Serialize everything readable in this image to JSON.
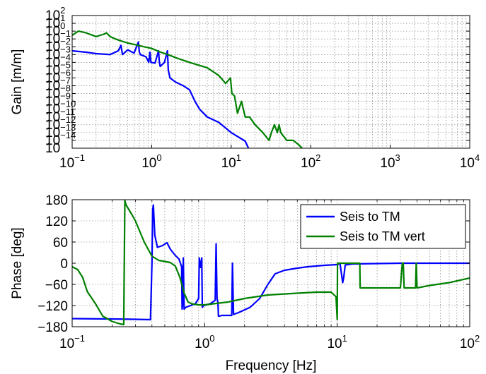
{
  "chart_data": [
    {
      "type": "line",
      "title": "",
      "xlabel": "",
      "ylabel": "Gain [m/m]",
      "xscale": "log",
      "yscale": "log",
      "xlim": [
        0.1,
        10000
      ],
      "ylim": [
        1e-15,
        100
      ],
      "grid": true,
      "legend": "none",
      "x_tick_labels": [
        {
          "base": "10",
          "exp": "−1"
        },
        {
          "base": "10",
          "exp": "0"
        },
        {
          "base": "10",
          "exp": "1"
        },
        {
          "base": "10",
          "exp": "2"
        },
        {
          "base": "10",
          "exp": "3"
        },
        {
          "base": "10",
          "exp": "4"
        }
      ],
      "y_tick_labels": [
        {
          "base": "10",
          "exp": "2"
        },
        {
          "base": "10",
          "exp": "1"
        },
        {
          "base": "10",
          "exp": "0"
        },
        {
          "base": "10",
          "exp": "−1"
        },
        {
          "base": "10",
          "exp": "−2"
        },
        {
          "base": "10",
          "exp": "−3"
        },
        {
          "base": "10",
          "exp": "−4"
        },
        {
          "base": "10",
          "exp": "−5"
        },
        {
          "base": "10",
          "exp": "−6"
        },
        {
          "base": "10",
          "exp": "−7"
        },
        {
          "base": "10",
          "exp": "−8"
        },
        {
          "base": "10",
          "exp": "−9"
        },
        {
          "base": "10",
          "exp": "−10"
        },
        {
          "base": "10",
          "exp": "−11"
        },
        {
          "base": "10",
          "exp": "−12"
        },
        {
          "base": "10",
          "exp": "−13"
        },
        {
          "base": "10",
          "exp": "−14"
        },
        {
          "base": "10",
          "exp": ""
        }
      ],
      "series": [
        {
          "name": "Seis to TM",
          "color": "#0000ff",
          "x": [
            0.1,
            0.15,
            0.2,
            0.3,
            0.38,
            0.41,
            0.43,
            0.5,
            0.6,
            0.68,
            0.7,
            0.72,
            0.85,
            0.92,
            0.95,
            0.98,
            1.1,
            1.22,
            1.25,
            1.28,
            1.45,
            1.58,
            1.62,
            1.7,
            2,
            2.5,
            3,
            3.5,
            4,
            5,
            7,
            10,
            15,
            16.5
          ],
          "y": [
            0.003,
            0.002,
            0.0013,
            0.001,
            0.003,
            0.015,
            0.001,
            0.004,
            0.0015,
            0.04,
            0.002,
            0.001,
            0.0005,
            0.0001,
            0.002,
            0.0001,
            8e-05,
            0.003,
            0.0001,
            3e-05,
            0.0001,
            0.003,
            1e-05,
            1e-06,
            3e-07,
            1e-07,
            3e-08,
            1e-09,
            1e-10,
            1e-11,
            2e-12,
            1e-13,
            8e-15,
            1e-15
          ]
        },
        {
          "name": "Seis to TM vert",
          "color": "#008000",
          "x": [
            0.1,
            0.12,
            0.15,
            0.2,
            0.25,
            0.27,
            0.3,
            0.35,
            0.4,
            0.5,
            0.6,
            0.8,
            1,
            1.3,
            1.6,
            2,
            3,
            5,
            7,
            8.5,
            9.8,
            10.2,
            11,
            12,
            13.5,
            15,
            17,
            20,
            25,
            30,
            32,
            35,
            38,
            40,
            42,
            50,
            60,
            70,
            78
          ],
          "y": [
            0.3,
            1,
            0.6,
            0.2,
            0.4,
            0.6,
            0.2,
            0.1,
            0.06,
            0.03,
            0.02,
            0.01,
            0.006,
            0.002,
            0.001,
            0.0004,
            0.0001,
            2e-05,
            2e-06,
            2e-07,
            1e-06,
            1e-08,
            5e-09,
            3e-11,
            1e-09,
            1e-11,
            1e-11,
            1e-12,
            1e-13,
            1e-14,
            1e-13,
            1e-12,
            1e-13,
            1e-12,
            1e-13,
            1e-14,
            1e-14,
            3e-15,
            1e-15
          ]
        }
      ]
    },
    {
      "type": "line",
      "title": "",
      "xlabel": "Frequency [Hz]",
      "ylabel": "Phase [deg]",
      "xscale": "log",
      "yscale": "linear",
      "xlim": [
        0.1,
        100
      ],
      "ylim": [
        -180,
        180
      ],
      "yticks": [
        "180",
        "120",
        "60",
        "0",
        "−60",
        "−120",
        "−180"
      ],
      "grid": true,
      "legend": "top-right",
      "x_tick_labels": [
        {
          "base": "10",
          "exp": "−1"
        },
        {
          "base": "10",
          "exp": "0"
        },
        {
          "base": "10",
          "exp": "1"
        },
        {
          "base": "10",
          "exp": "2"
        }
      ],
      "series": [
        {
          "name": "Seis to TM",
          "color": "#0000ff",
          "x": [
            0.1,
            0.2,
            0.3,
            0.39,
            0.4,
            0.405,
            0.41,
            0.42,
            0.44,
            0.48,
            0.52,
            0.55,
            0.6,
            0.64,
            0.67,
            0.675,
            0.68,
            0.69,
            0.7,
            0.72,
            0.85,
            0.9,
            0.91,
            0.93,
            0.95,
            0.96,
            0.98,
            1.1,
            1.2,
            1.22,
            1.24,
            1.26,
            1.27,
            1.29,
            1.35,
            1.45,
            1.55,
            1.6,
            1.62,
            1.65,
            1.8,
            2.2,
            2.6,
            3,
            3.4,
            4,
            5,
            6,
            8,
            10,
            10.5,
            11,
            11.2,
            11.5,
            13,
            20,
            30,
            50,
            100
          ],
          "y": [
            -157,
            -158,
            -159,
            -160,
            0,
            150,
            165,
            80,
            45,
            50,
            58,
            40,
            22,
            12,
            -10,
            -130,
            -120,
            15,
            -130,
            -125,
            -115,
            -100,
            15,
            -12,
            15,
            -125,
            -120,
            -115,
            -105,
            55,
            -100,
            -112,
            -150,
            -150,
            -148,
            -148,
            -148,
            -148,
            0,
            -145,
            -140,
            -125,
            -100,
            -60,
            -30,
            -20,
            -14,
            -10,
            -6,
            -4,
            0,
            -55,
            -40,
            -5,
            -2,
            -1,
            0,
            0,
            0
          ]
        },
        {
          "name": "Seis to TM vert",
          "color": "#008000",
          "x": [
            0.1,
            0.11,
            0.12,
            0.13,
            0.15,
            0.17,
            0.2,
            0.23,
            0.245,
            0.25,
            0.255,
            0.28,
            0.3,
            0.35,
            0.4,
            0.45,
            0.5,
            0.55,
            0.6,
            0.65,
            0.7,
            0.75,
            0.8,
            0.9,
            1,
            1.5,
            2,
            3,
            5,
            7,
            9,
            9.8,
            10,
            10.05,
            10.1,
            11,
            12,
            14,
            14.8,
            14.9,
            15,
            16,
            20,
            25,
            30,
            31,
            31.5,
            32,
            35,
            39,
            39.5,
            40,
            50,
            70,
            100
          ],
          "y": [
            -10,
            -18,
            -40,
            -80,
            -115,
            -150,
            -165,
            -172,
            -174,
            178,
            165,
            140,
            120,
            60,
            20,
            8,
            5,
            2,
            -8,
            -40,
            -85,
            -110,
            -115,
            -118,
            -118,
            -110,
            -100,
            -90,
            -85,
            -82,
            -82,
            -95,
            -160,
            0,
            0,
            0,
            0,
            0,
            0,
            -70,
            -70,
            -70,
            -70,
            -70,
            -70,
            0,
            0,
            -70,
            -70,
            -70,
            0,
            -70,
            -63,
            -55,
            -42
          ]
        }
      ]
    }
  ]
}
